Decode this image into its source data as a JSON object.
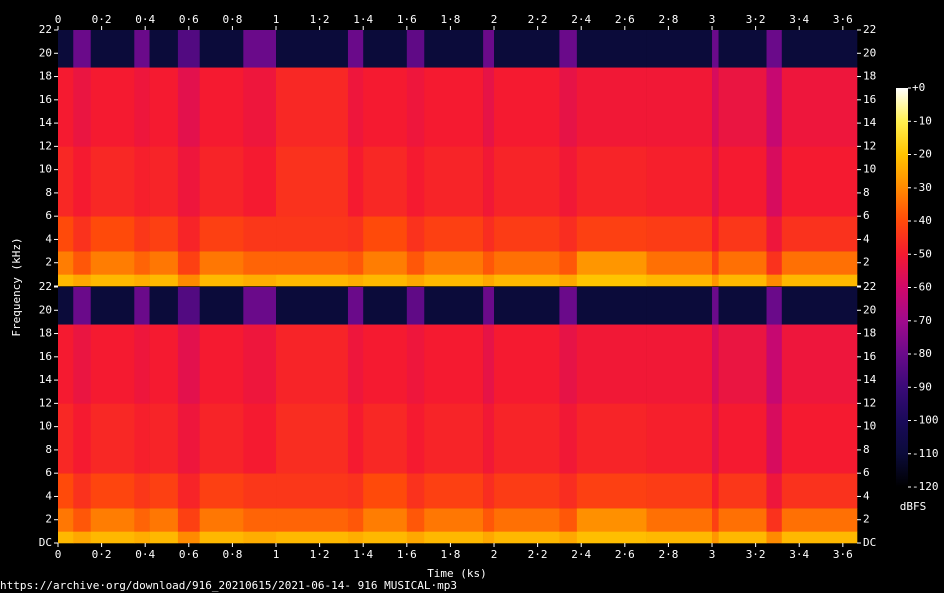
{
  "chart_data": {
    "type": "heatmap",
    "x_label": "Time (ks)",
    "y_label": "Frequency (kHz)",
    "colorbar_label": "dBFS",
    "footer": "https://archive·org/download/916_20210615/2021-06-14- 916 MUSICAL·mp3",
    "xlim": [
      0,
      3.665
    ],
    "xticks": [
      0,
      {
        "value": 0.2,
        "label": "0·2"
      },
      {
        "value": 0.4,
        "label": "0·4"
      },
      {
        "value": 0.6,
        "label": "0·6"
      },
      {
        "value": 0.8,
        "label": "0·8"
      },
      1,
      {
        "value": 1.2,
        "label": "1·2"
      },
      {
        "value": 1.4,
        "label": "1·4"
      },
      {
        "value": 1.6,
        "label": "1·6"
      },
      {
        "value": 1.8,
        "label": "1·8"
      },
      2,
      {
        "value": 2.2,
        "label": "2·2"
      },
      {
        "value": 2.4,
        "label": "2·4"
      },
      {
        "value": 2.6,
        "label": "2·6"
      },
      {
        "value": 2.8,
        "label": "2·8"
      },
      3,
      {
        "value": 3.2,
        "label": "3·2"
      },
      {
        "value": 3.4,
        "label": "3·4"
      },
      {
        "value": 3.6,
        "label": "3·6"
      }
    ],
    "ylim": [
      0,
      22
    ],
    "yticks": [
      {
        "value": 0,
        "label": "DC"
      },
      2,
      4,
      6,
      8,
      10,
      12,
      14,
      16,
      18,
      20,
      22
    ],
    "clim": [
      -120,
      0
    ],
    "cticks": [
      {
        "value": 0,
        "label": "+0"
      },
      -10,
      -20,
      -30,
      -40,
      -50,
      -60,
      -70,
      -80,
      -90,
      -100,
      -110,
      -120
    ],
    "colormap": [
      "#000000",
      "#0b0b3a",
      "#1a0a5a",
      "#3a0a78",
      "#6a0a8a",
      "#a00a8c",
      "#d0086a",
      "#f51a30",
      "#ff4a0a",
      "#ff8a00",
      "#ffc400",
      "#fff050",
      "#ffffff"
    ],
    "x_edges": [
      0,
      0.07,
      0.15,
      0.35,
      0.42,
      0.55,
      0.65,
      0.85,
      1.0,
      1.33,
      1.4,
      1.6,
      1.68,
      1.95,
      2.0,
      2.3,
      2.38,
      2.7,
      3.0,
      3.03,
      3.25,
      3.32,
      3.665
    ],
    "y_edges": [
      0,
      1,
      3,
      6,
      12,
      18.8,
      22
    ],
    "panels": [
      {
        "z": [
          [
            -22,
            -25,
            -22,
            -24,
            -22,
            -30,
            -22,
            -24,
            -22,
            -24,
            -22,
            -25,
            -22,
            -25,
            -22,
            -25,
            -20,
            -22,
            -28,
            -22,
            -30,
            -22
          ],
          [
            -32,
            -38,
            -32,
            -36,
            -33,
            -42,
            -33,
            -36,
            -36,
            -38,
            -32,
            -38,
            -33,
            -38,
            -34,
            -38,
            -28,
            -34,
            -42,
            -34,
            -45,
            -34
          ],
          [
            -40,
            -45,
            -40,
            -44,
            -42,
            -48,
            -42,
            -44,
            -44,
            -45,
            -40,
            -45,
            -42,
            -46,
            -43,
            -46,
            -42,
            -43,
            -50,
            -44,
            -52,
            -45
          ],
          [
            -47,
            -50,
            -47,
            -49,
            -48,
            -52,
            -48,
            -50,
            -45,
            -50,
            -47,
            -50,
            -48,
            -51,
            -48,
            -51,
            -48,
            -49,
            -55,
            -50,
            -58,
            -50
          ],
          [
            -50,
            -53,
            -50,
            -52,
            -50,
            -55,
            -50,
            -52,
            -47,
            -52,
            -50,
            -52,
            -50,
            -54,
            -50,
            -54,
            -51,
            -51,
            -58,
            -53,
            -62,
            -52
          ],
          [
            -110,
            -80,
            -110,
            -80,
            -110,
            -85,
            -110,
            -80,
            -110,
            -80,
            -110,
            -82,
            -110,
            -80,
            -110,
            -80,
            -110,
            -110,
            -80,
            -110,
            -80,
            -110
          ]
        ]
      },
      {
        "z": [
          [
            -22,
            -25,
            -22,
            -24,
            -22,
            -30,
            -22,
            -24,
            -22,
            -24,
            -22,
            -25,
            -22,
            -25,
            -22,
            -25,
            -21,
            -22,
            -28,
            -22,
            -30,
            -22
          ],
          [
            -33,
            -38,
            -32,
            -36,
            -33,
            -42,
            -33,
            -36,
            -36,
            -38,
            -32,
            -38,
            -33,
            -38,
            -34,
            -38,
            -29,
            -34,
            -42,
            -34,
            -45,
            -34
          ],
          [
            -40,
            -45,
            -41,
            -44,
            -42,
            -48,
            -42,
            -44,
            -44,
            -45,
            -40,
            -45,
            -42,
            -46,
            -43,
            -46,
            -42,
            -43,
            -50,
            -44,
            -52,
            -45
          ],
          [
            -47,
            -50,
            -47,
            -49,
            -48,
            -52,
            -48,
            -50,
            -46,
            -50,
            -47,
            -50,
            -48,
            -51,
            -48,
            -51,
            -48,
            -49,
            -55,
            -50,
            -58,
            -50
          ],
          [
            -50,
            -53,
            -50,
            -52,
            -50,
            -55,
            -50,
            -52,
            -48,
            -52,
            -50,
            -52,
            -50,
            -54,
            -50,
            -54,
            -51,
            -51,
            -58,
            -53,
            -62,
            -52
          ],
          [
            -110,
            -80,
            -110,
            -80,
            -110,
            -85,
            -110,
            -80,
            -110,
            -80,
            -110,
            -82,
            -110,
            -80,
            -110,
            -80,
            -110,
            -110,
            -80,
            -110,
            -80,
            -110
          ]
        ]
      }
    ]
  }
}
